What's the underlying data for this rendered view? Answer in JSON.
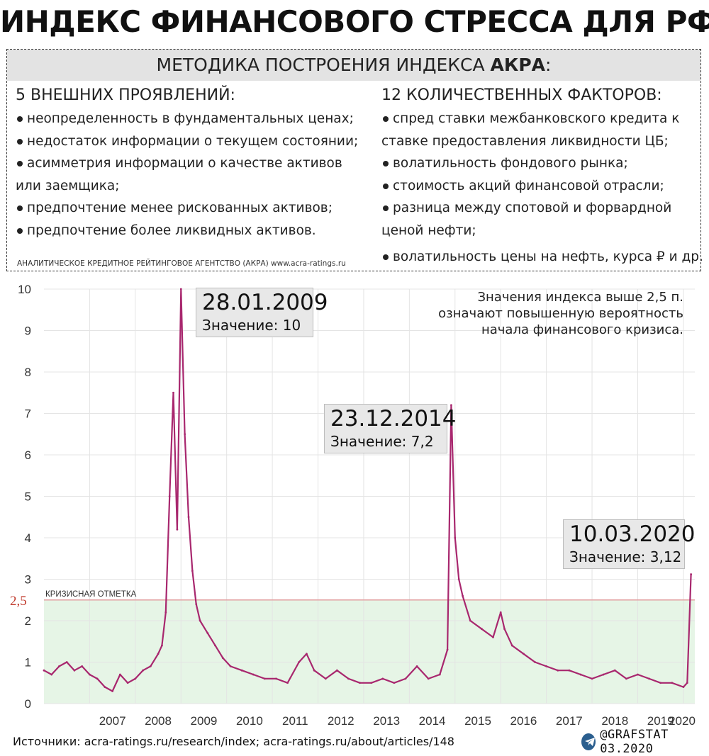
{
  "title": "ИНДЕКС ФИНАНСОВОГО СТРЕССА ДЛЯ РФ",
  "method": {
    "heading_prefix": "МЕТОДИКА ПОСТРОЕНИЯ ИНДЕКСА ",
    "heading_bold": "АКРА",
    "heading_suffix": ":",
    "left_title": "5 ВНЕШНИХ ПРОЯВЛЕНИЙ:",
    "left_items": [
      "неопределенность в фундаментальных ценах;",
      "недостаток информации о текущем состоянии;",
      "асимметрия информации о качестве активов",
      "или заемщика;",
      "предпочтение менее рискованных активов;",
      "предпочтение более ликвидных активов."
    ],
    "right_title": "12 КОЛИЧЕСТВЕННЫХ ФАКТОРОВ:",
    "right_items": [
      "спред ставки межбанковского кредита к",
      "ставке предоставления ликвидности ЦБ;",
      "волатильность фондового рынка;",
      "стоимость акций финансовой отрасли;",
      "разница между спотовой и форвардной",
      "ценой нефти;",
      "волатильность цены на нефть, курса ₽ и др."
    ],
    "agency_note": "АНАЛИТИЧЕСКОЕ КРЕДИТНОЕ РЕЙТИНГОВОЕ АГЕНТСТВО (АКРА) www.acra-ratings.ru"
  },
  "callouts": [
    {
      "date": "28.01.2009",
      "value_text": "Значение: 10"
    },
    {
      "date": "23.12.2014",
      "value_text": "Значение: 7,2"
    },
    {
      "date": "10.03.2020",
      "value_text": "Значение: 3,12"
    }
  ],
  "note_lines": [
    "Значения индекса выше 2,5 п.",
    "означают повышенную вероятность",
    "начала финансового кризиса."
  ],
  "footer": {
    "sources": "Источники: acra-ratings.ru/research/index; acra-ratings.ru/about/articles/148",
    "brand": "@GRAFSTAT 03.2020"
  },
  "colors": {
    "series": "#a8276e",
    "crisis_zone": "#e6f5e6",
    "threshold_line": "#e2a0a0",
    "threshold_label": "#c0392b",
    "grid": "#e4e4e4"
  },
  "chart_data": {
    "type": "line",
    "y_ticks": [
      0,
      1,
      2,
      3,
      4,
      5,
      6,
      7,
      8,
      9,
      10
    ],
    "ylim": [
      0,
      10
    ],
    "x_tick_labels": [
      "2007",
      "2008",
      "2009",
      "2010",
      "2011",
      "2012",
      "2013",
      "2014",
      "2015",
      "2016",
      "2017",
      "2018",
      "2019",
      "2020"
    ],
    "threshold": {
      "value": 2.5,
      "label": "2,5",
      "text": "КРИЗИСНАЯ ОТМЕТКА"
    },
    "series": [
      {
        "x": [
          "2006-01",
          "2006-03",
          "2006-05",
          "2006-07",
          "2006-09",
          "2006-11",
          "2007-01",
          "2007-03",
          "2007-05",
          "2007-07",
          "2007-09",
          "2007-11",
          "2008-01",
          "2008-03",
          "2008-05",
          "2008-07",
          "2008-08",
          "2008-09",
          "2008-10",
          "2008-11",
          "2008-12",
          "2009-01",
          "2009-02",
          "2009-03",
          "2009-04",
          "2009-05",
          "2009-06",
          "2009-08",
          "2009-10",
          "2009-12",
          "2010-02",
          "2010-05",
          "2010-08",
          "2010-11",
          "2011-02",
          "2011-05",
          "2011-08",
          "2011-10",
          "2011-12",
          "2012-03",
          "2012-06",
          "2012-09",
          "2012-12",
          "2013-03",
          "2013-06",
          "2013-09",
          "2013-12",
          "2014-03",
          "2014-06",
          "2014-09",
          "2014-11",
          "2014-12",
          "2015-01",
          "2015-02",
          "2015-03",
          "2015-05",
          "2015-08",
          "2015-11",
          "2016-01",
          "2016-02",
          "2016-04",
          "2016-07",
          "2016-10",
          "2017-01",
          "2017-04",
          "2017-07",
          "2017-10",
          "2018-01",
          "2018-04",
          "2018-07",
          "2018-10",
          "2019-01",
          "2019-04",
          "2019-07",
          "2019-10",
          "2020-01",
          "2020-02",
          "2020-03"
        ],
        "y": [
          0.8,
          0.7,
          0.9,
          1.0,
          0.8,
          0.9,
          0.7,
          0.6,
          0.4,
          0.3,
          0.7,
          0.5,
          0.6,
          0.8,
          0.9,
          1.2,
          1.4,
          2.2,
          5.0,
          7.5,
          4.2,
          10.0,
          6.5,
          4.5,
          3.2,
          2.4,
          2.0,
          1.7,
          1.4,
          1.1,
          0.9,
          0.8,
          0.7,
          0.6,
          0.6,
          0.5,
          1.0,
          1.2,
          0.8,
          0.6,
          0.8,
          0.6,
          0.5,
          0.5,
          0.6,
          0.5,
          0.6,
          0.9,
          0.6,
          0.7,
          1.3,
          7.2,
          4.0,
          3.0,
          2.6,
          2.0,
          1.8,
          1.6,
          2.2,
          1.8,
          1.4,
          1.2,
          1.0,
          0.9,
          0.8,
          0.8,
          0.7,
          0.6,
          0.7,
          0.8,
          0.6,
          0.7,
          0.6,
          0.5,
          0.5,
          0.4,
          0.5,
          3.12
        ]
      }
    ]
  }
}
